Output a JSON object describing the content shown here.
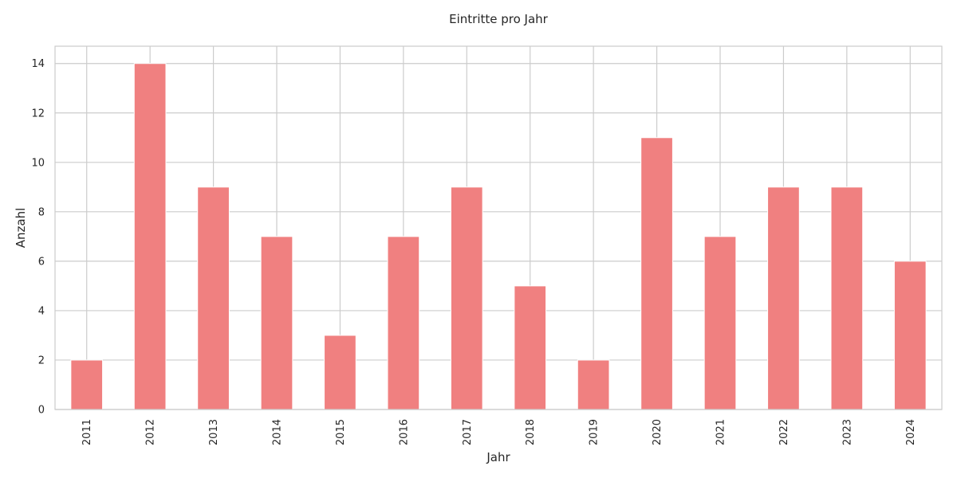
{
  "chart_data": {
    "type": "bar",
    "title": "Eintritte pro Jahr",
    "xlabel": "Jahr",
    "ylabel": "Anzahl",
    "categories": [
      "2011",
      "2012",
      "2013",
      "2014",
      "2015",
      "2016",
      "2017",
      "2018",
      "2019",
      "2020",
      "2021",
      "2022",
      "2023",
      "2024"
    ],
    "values": [
      2,
      14,
      9,
      7,
      3,
      7,
      9,
      5,
      2,
      11,
      7,
      9,
      9,
      6
    ],
    "ylim": [
      0,
      14.7
    ],
    "yticks": [
      0,
      2,
      4,
      6,
      8,
      10,
      12,
      14
    ],
    "grid": true,
    "bar_color": "#f08080",
    "grid_color": "#cccccc"
  }
}
